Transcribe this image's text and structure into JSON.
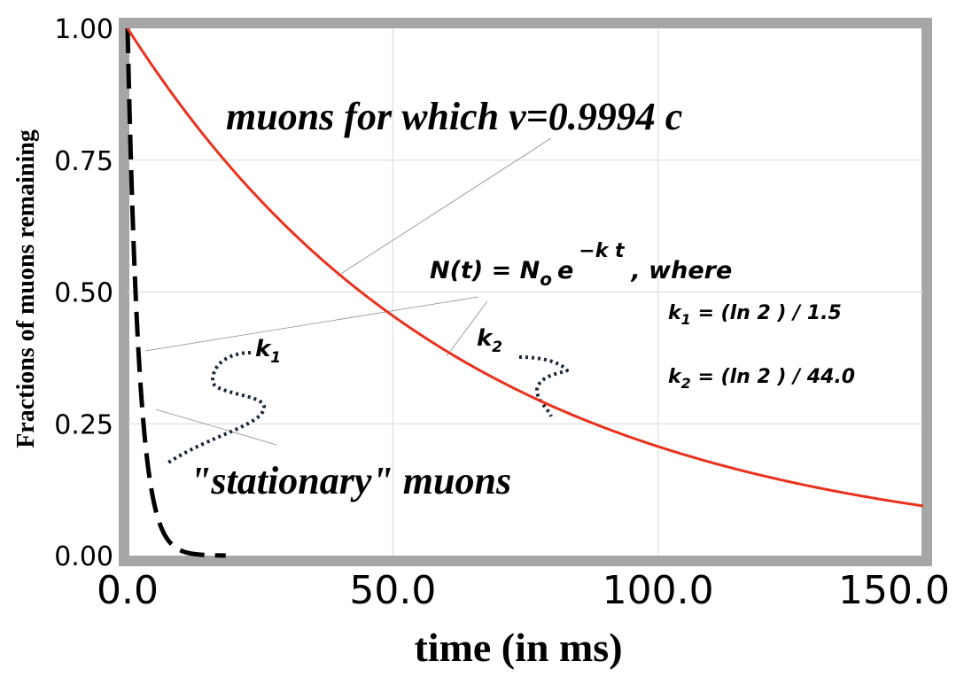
{
  "chart_data": {
    "type": "line",
    "xlabel": "time (in ms)",
    "ylabel": "Fractions of muons remaining",
    "xlim": [
      0,
      150
    ],
    "ylim": [
      0,
      1
    ],
    "grid": true,
    "x_ticks": [
      "0.0",
      "50.0",
      "100.0",
      "150.0"
    ],
    "y_ticks": [
      "0.00",
      "0.25",
      "0.50",
      "0.75",
      "1.00"
    ],
    "series": [
      {
        "name": "\"stationary\" muons",
        "half_life": 1.5,
        "x_end": 18.5,
        "style": "dashed",
        "color": "#000000"
      },
      {
        "name": "muons for which v=0.9994 c",
        "half_life": 44.0,
        "x_end": 150,
        "style": "solid",
        "color": "#e8321e"
      }
    ],
    "annotations": {
      "fast_label": "muons for which v=0.9994 c",
      "slow_label": "\"stationary\" muons",
      "k1_label": "k",
      "k1_sub": "1",
      "k2_label": "k",
      "k2_sub": "2",
      "equation": {
        "lhs": "N(t) = N",
        "n_sub": "o",
        "e": "e",
        "exponent": "−k t",
        "tail": ", where"
      },
      "k1_def": {
        "k": "k",
        "sub": "1",
        "rest": " = (ln 2 ) / 1.5"
      },
      "k2_def": {
        "k": "k",
        "sub": "2",
        "rest": " = (ln 2 ) / 44.0"
      }
    }
  }
}
